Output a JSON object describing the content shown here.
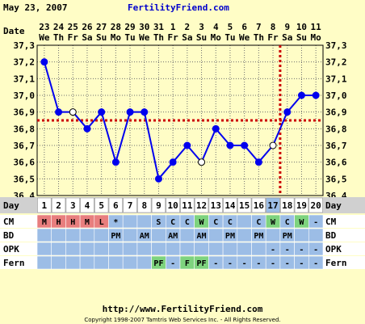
{
  "header": {
    "date": "May 23, 2007",
    "site": "FertilityFriend.com"
  },
  "footer": {
    "url": "http://www.FertilityFriend.com",
    "copyright": "Copyright 1998-2007 Tamtris Web Services Inc. - All Rights Reserved."
  },
  "colors": {
    "background": "#fffdc6",
    "temp_line": "#0000ee",
    "coverline": "#cc0000",
    "ovulation_line": "#cc0000",
    "grid": "#6e6e6e",
    "row_blue": "#9cbde6",
    "cell_red": "#e87e7e",
    "cell_green": "#7ed37e"
  },
  "chart_data": {
    "type": "line",
    "title": "",
    "ylabel": "",
    "xlabel": "",
    "ylim": [
      36.4,
      37.3
    ],
    "yticks": [
      "37,3",
      "37,2",
      "37,1",
      "37,0",
      "36,9",
      "36,8",
      "36,7",
      "36,6",
      "36,5",
      "36,4"
    ],
    "grid": true,
    "date_label": "Date",
    "dates": [
      "23",
      "24",
      "25",
      "26",
      "27",
      "28",
      "29",
      "30",
      "31",
      "1",
      "2",
      "3",
      "4",
      "5",
      "6",
      "7",
      "8",
      "9",
      "10",
      "11"
    ],
    "weekdays": [
      "We",
      "Th",
      "Fr",
      "Sa",
      "Su",
      "Mo",
      "Tu",
      "We",
      "Th",
      "Fr",
      "Sa",
      "Su",
      "Mo",
      "Tu",
      "We",
      "Th",
      "Fr",
      "Sa",
      "Su",
      "Mo"
    ],
    "day_label": "Day",
    "days": [
      "1",
      "2",
      "3",
      "4",
      "5",
      "6",
      "7",
      "8",
      "9",
      "10",
      "11",
      "12",
      "13",
      "14",
      "15",
      "16",
      "17",
      "18",
      "19",
      "20"
    ],
    "temperatures": [
      37.2,
      36.9,
      36.9,
      36.8,
      36.9,
      36.6,
      36.9,
      36.9,
      36.5,
      36.6,
      36.7,
      36.6,
      36.8,
      36.7,
      36.7,
      36.6,
      36.7,
      36.9,
      37.0,
      37.0
    ],
    "hollow_points": [
      3,
      12,
      17
    ],
    "coverline": 36.85,
    "ovulation_day": 17,
    "rows": [
      {
        "label": "CM",
        "values": [
          "M",
          "H",
          "H",
          "M",
          "L",
          "*",
          "",
          "",
          "S",
          "C",
          "C",
          "W",
          "C",
          "C",
          "",
          "C",
          "W",
          "C",
          "W",
          "-"
        ],
        "colors": [
          "red",
          "red",
          "red",
          "red",
          "red",
          "",
          "",
          "",
          "",
          "",
          "",
          "green",
          "",
          "",
          "",
          "",
          "green",
          "",
          "green",
          ""
        ]
      },
      {
        "label": "BD",
        "values": [
          "",
          "",
          "",
          "",
          "",
          "PM",
          "",
          "AM",
          "",
          "AM",
          "",
          "AM",
          "",
          "PM",
          "",
          "PM",
          "",
          "PM",
          "",
          ""
        ],
        "colors": []
      },
      {
        "label": "OPK",
        "values": [
          "",
          "",
          "",
          "",
          "",
          "",
          "",
          "",
          "",
          "",
          "",
          "",
          "",
          "",
          "",
          "",
          "-",
          "-",
          "-",
          "-"
        ],
        "colors": []
      },
      {
        "label": "Fern",
        "values": [
          "",
          "",
          "",
          "",
          "",
          "",
          "",
          "",
          "PF",
          "-",
          "F",
          "PF",
          "-",
          "-",
          "-",
          "-",
          "-",
          "-",
          "-",
          "-"
        ],
        "colors": [
          "",
          "",
          "",
          "",
          "",
          "",
          "",
          "",
          "green",
          "",
          "green",
          "green",
          "",
          "",
          "",
          "",
          "",
          "",
          "",
          ""
        ]
      }
    ]
  }
}
